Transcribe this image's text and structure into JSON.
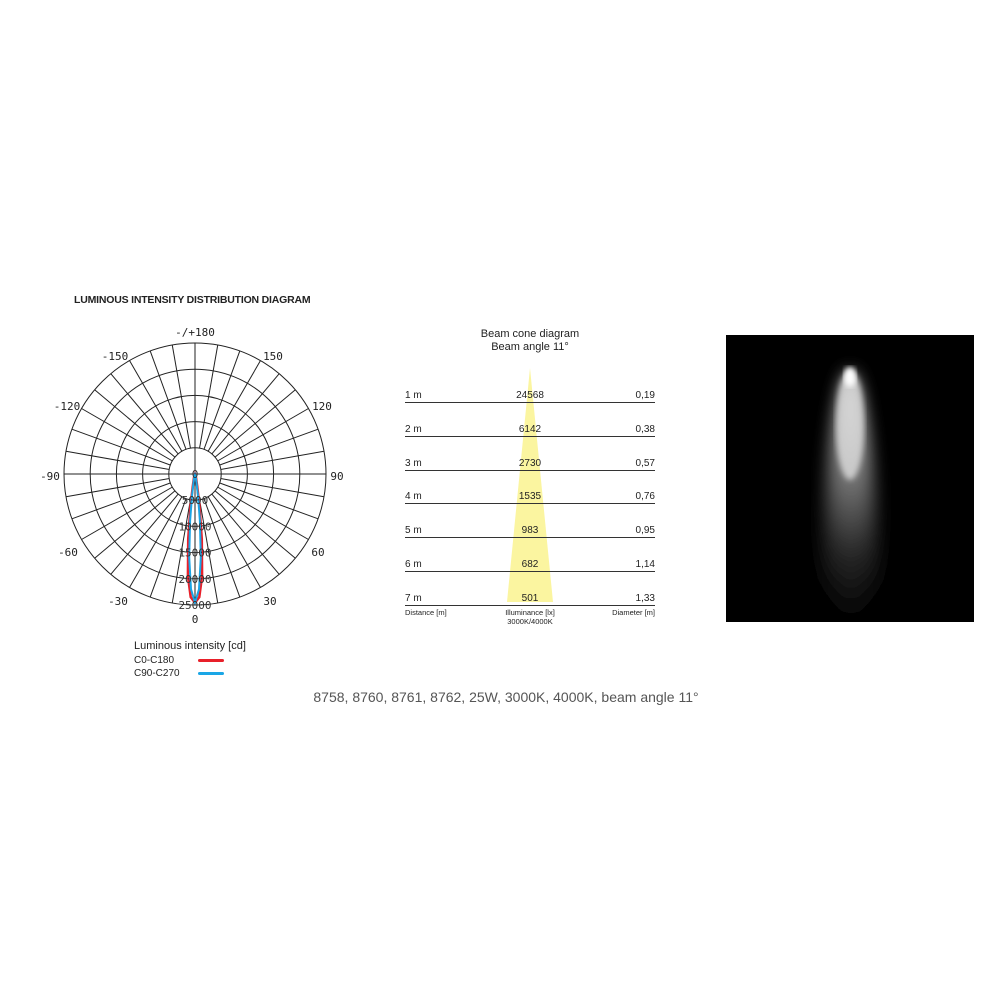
{
  "ldt": {
    "title": "LUMINOUS INTENSITY DISTRIBUTION DIAGRAM",
    "angle_labels": {
      "top": "-/+180",
      "m150": "-150",
      "p150": "150",
      "m120": "-120",
      "p120": "120",
      "m90": "-90",
      "p90": "90",
      "m60": "-60",
      "p60": "60",
      "m30": "-30",
      "p30": "30",
      "bottom": "0"
    },
    "ring_labels": [
      "0",
      "5000",
      "10000",
      "15000",
      "20000",
      "25000"
    ],
    "legend_title": "Luminous intensity [cd]",
    "series": [
      {
        "name": "C0-C180",
        "color": "#e8202a",
        "angles": [
          0,
          2,
          4,
          6,
          8,
          10,
          15,
          20,
          30
        ],
        "values": [
          24568,
          23500,
          19500,
          12500,
          6000,
          2500,
          800,
          300,
          0
        ]
      },
      {
        "name": "C90-C270",
        "color": "#1aa6e6",
        "angles": [
          0,
          2,
          4,
          6,
          8,
          10,
          15,
          20,
          30
        ],
        "values": [
          24568,
          22000,
          16000,
          9000,
          4000,
          1500,
          500,
          200,
          0
        ]
      }
    ]
  },
  "beam": {
    "title": "Beam cone diagram",
    "subtitle": "Beam angle 11°",
    "rows": [
      {
        "distance": "1 m",
        "lux": "24568",
        "diameter": "0,19"
      },
      {
        "distance": "2 m",
        "lux": "6142",
        "diameter": "0,38"
      },
      {
        "distance": "3 m",
        "lux": "2730",
        "diameter": "0,57"
      },
      {
        "distance": "4 m",
        "lux": "1535",
        "diameter": "0,76"
      },
      {
        "distance": "5 m",
        "lux": "983",
        "diameter": "0,95"
      },
      {
        "distance": "6 m",
        "lux": "682",
        "diameter": "1,14"
      },
      {
        "distance": "7 m",
        "lux": "501",
        "diameter": "1,33"
      }
    ],
    "foot_distance": "Distance [m]",
    "foot_illuminance": "Illuminance [lx]",
    "foot_cct": "3000K/4000K",
    "foot_diameter": "Diameter [m]",
    "cone_color": "#fbf5a0"
  },
  "caption": "8758, 8760, 8761, 8762, 25W, 3000K, 4000K, beam angle 11°"
}
